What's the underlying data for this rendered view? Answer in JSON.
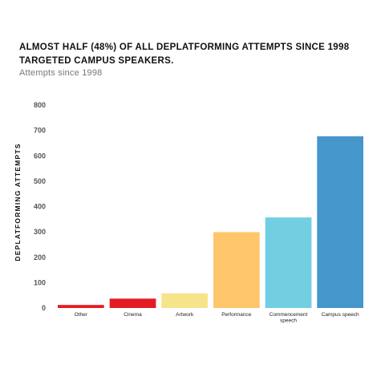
{
  "chart_data": {
    "type": "bar",
    "title": "ALMOST HALF (48%) OF ALL DEPLATFORMING ATTEMPTS SINCE 1998 TARGETED CAMPUS SPEAKERS.",
    "subtitle": "Attempts since 1998",
    "ylabel": "DEPLATFORMING ATTEMPTS",
    "xlabel": "",
    "ylim": [
      0,
      800
    ],
    "yticks": [
      0,
      100,
      200,
      300,
      400,
      500,
      600,
      700,
      800
    ],
    "grid": false,
    "categories": [
      {
        "label_lines": [
          "Other"
        ],
        "value": 12,
        "color": "#e31b23"
      },
      {
        "label_lines": [
          "Cinema"
        ],
        "value": 37,
        "color": "#e31b23"
      },
      {
        "label_lines": [
          "Artwork"
        ],
        "value": 58,
        "color": "#f5e48a"
      },
      {
        "label_lines": [
          "Performance"
        ],
        "value": 299,
        "color": "#ffc56b"
      },
      {
        "label_lines": [
          "Commencement",
          "speech"
        ],
        "value": 357,
        "color": "#72cfe2"
      },
      {
        "label_lines": [
          "Campus speech"
        ],
        "value": 677,
        "color": "#4496cb"
      }
    ]
  }
}
